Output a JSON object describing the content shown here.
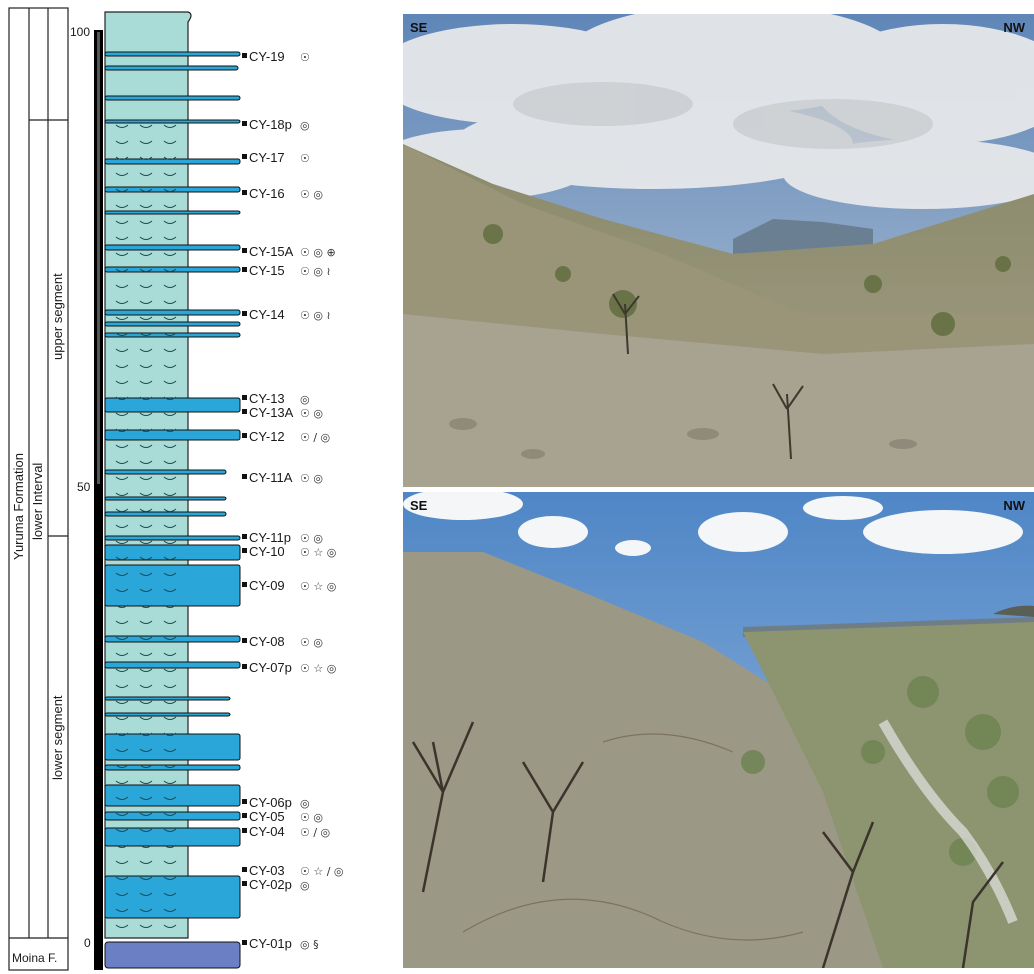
{
  "column": {
    "formation": "Yuruma Formation",
    "intervals": [
      "lower Interval"
    ],
    "segments": {
      "upper": "upper segment",
      "lower": "lower segment"
    },
    "base_unit": "Moina F.",
    "scale_ticks": [
      "100",
      "50",
      "0"
    ],
    "samples": [
      {
        "label": "CY-19",
        "fossils": [
          "ammonite"
        ]
      },
      {
        "label": "CY-18p",
        "fossils": [
          "belemnite"
        ]
      },
      {
        "label": "CY-17",
        "fossils": [
          "ammonite"
        ]
      },
      {
        "label": "CY-16",
        "fossils": [
          "ammonite",
          "belemnite"
        ]
      },
      {
        "label": "CY-15A",
        "fossils": [
          "ammonite",
          "belemnite",
          "echinoid"
        ]
      },
      {
        "label": "CY-15",
        "fossils": [
          "ammonite",
          "belemnite",
          "trace-fossil"
        ]
      },
      {
        "label": "CY-14",
        "fossils": [
          "ammonite",
          "belemnite",
          "trace-fossil"
        ]
      },
      {
        "label": "CY-13",
        "fossils": [
          "belemnite"
        ]
      },
      {
        "label": "CY-13A",
        "fossils": [
          "ammonite",
          "belemnite"
        ]
      },
      {
        "label": "CY-12",
        "fossils": [
          "ammonite",
          "bivalve-shell",
          "belemnite"
        ]
      },
      {
        "label": "CY-11A",
        "fossils": [
          "ammonite",
          "belemnite"
        ]
      },
      {
        "label": "CY-11p",
        "fossils": [
          "ammonite",
          "belemnite"
        ]
      },
      {
        "label": "CY-10",
        "fossils": [
          "ammonite",
          "crinoid",
          "belemnite"
        ]
      },
      {
        "label": "CY-09",
        "fossils": [
          "ammonite",
          "crinoid",
          "belemnite"
        ]
      },
      {
        "label": "CY-08",
        "fossils": [
          "ammonite",
          "belemnite"
        ]
      },
      {
        "label": "CY-07p",
        "fossils": [
          "ammonite",
          "crinoid",
          "belemnite"
        ]
      },
      {
        "label": "CY-06p",
        "fossils": [
          "belemnite"
        ]
      },
      {
        "label": "CY-05",
        "fossils": [
          "ammonite",
          "belemnite"
        ]
      },
      {
        "label": "CY-04",
        "fossils": [
          "ammonite",
          "bivalve-shell",
          "belemnite"
        ]
      },
      {
        "label": "CY-03",
        "fossils": [
          "ammonite",
          "crinoid",
          "bivalve-shell",
          "belemnite"
        ]
      },
      {
        "label": "CY-02p",
        "fossils": [
          "belemnite"
        ]
      },
      {
        "label": "CY-01p",
        "fossils": [
          "belemnite",
          "worm-tube"
        ]
      }
    ]
  },
  "photos": [
    {
      "left_direction": "SE",
      "right_direction": "NW",
      "subject": "hillside-outcrop-photo"
    },
    {
      "left_direction": "SE",
      "right_direction": "NW",
      "subject": "valley-outcrop-photo"
    }
  ],
  "colors": {
    "mudstone": "#a9dcd6",
    "limestone": "#2aa6d8",
    "base_unit": "#6b7fc4",
    "scale_bar": "#000000"
  },
  "fossil_icons": {
    "ammonite": "☉",
    "belemnite": "◎",
    "crinoid": "☆",
    "bivalve-shell": "∕",
    "echinoid": "⊕",
    "trace-fossil": "≀",
    "worm-tube": "§"
  }
}
